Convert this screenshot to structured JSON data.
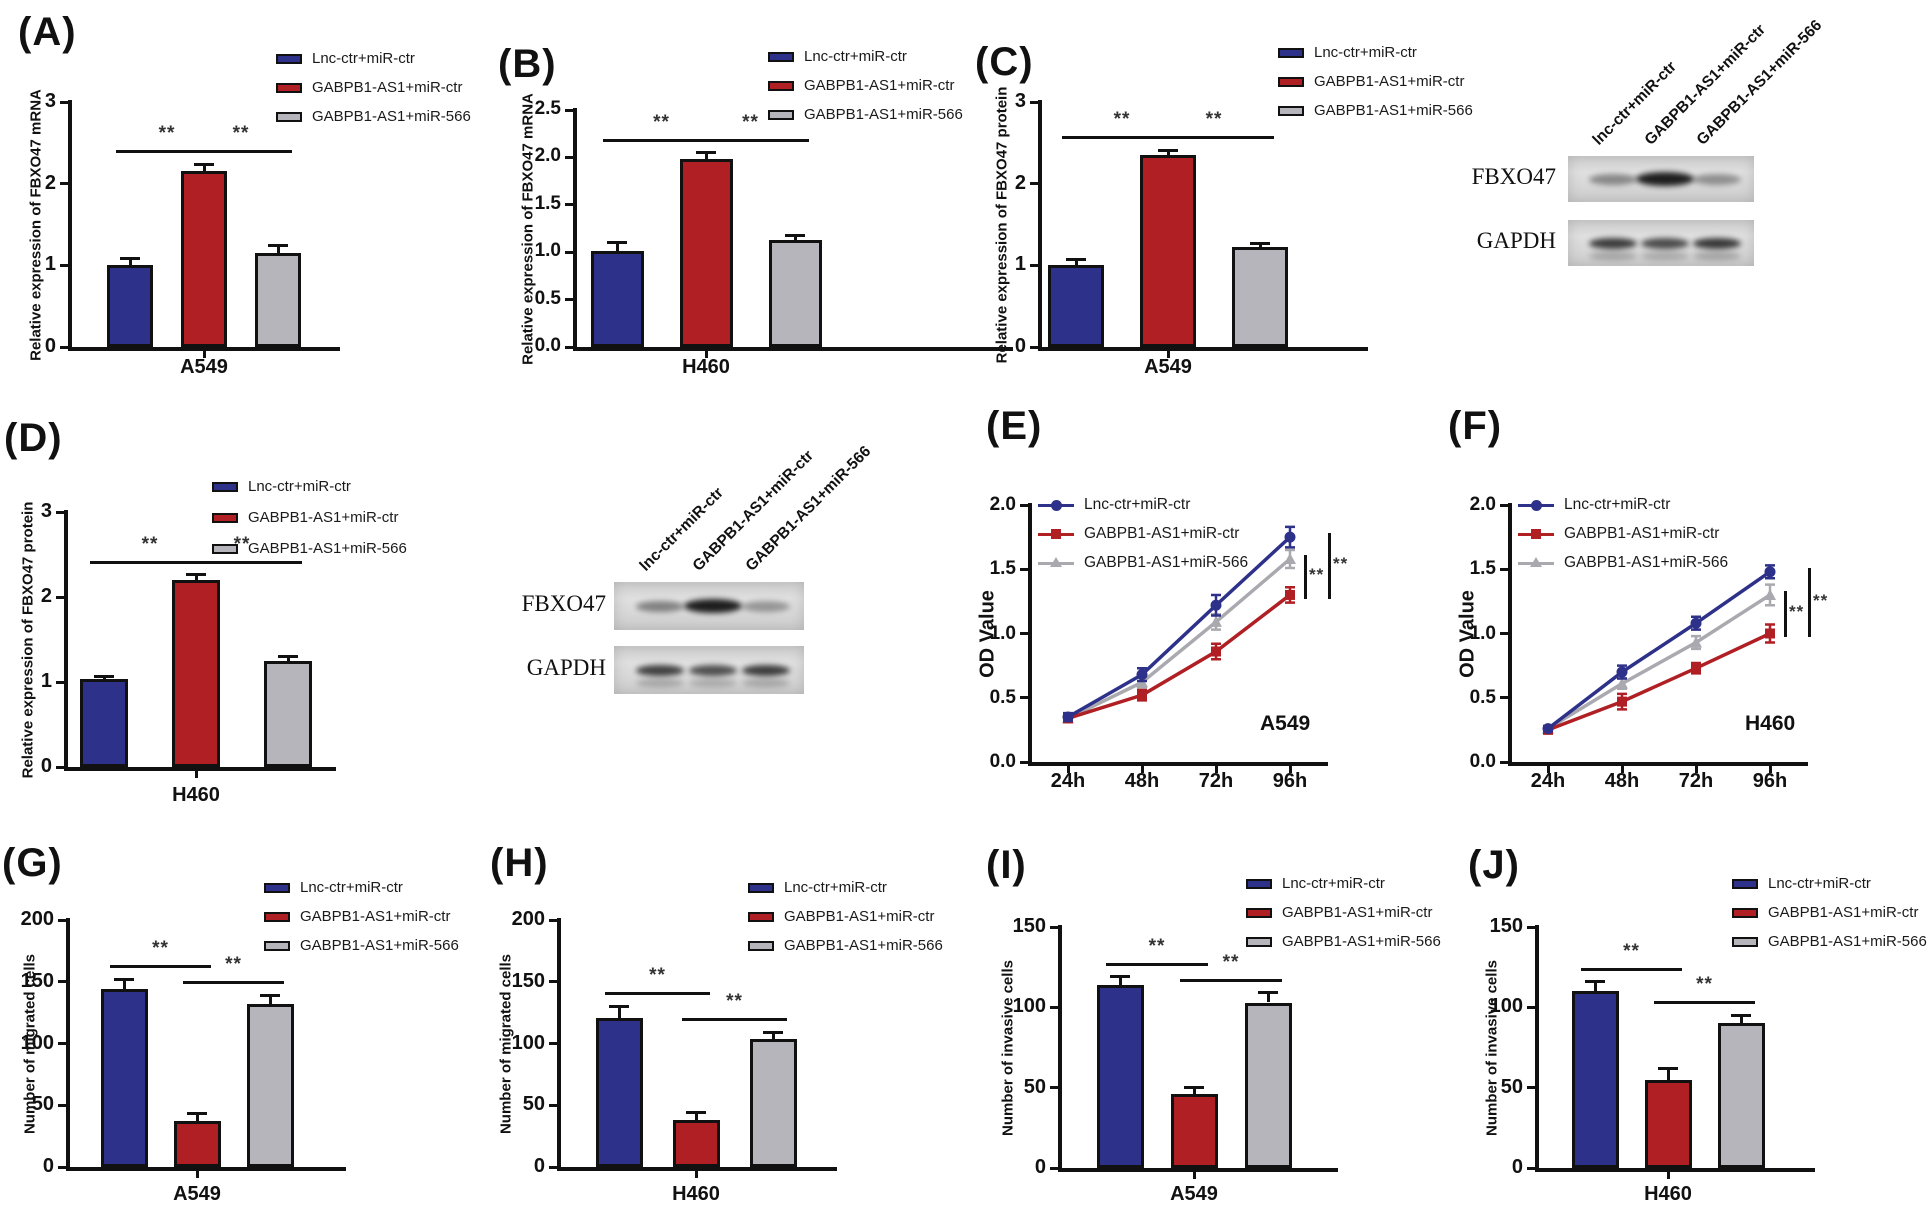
{
  "figure": {
    "groups": [
      {
        "label": "Lnc-ctr+miR-ctr",
        "color": "#2d3189"
      },
      {
        "label": "GABPB1-AS1+miR-ctr",
        "color": "#b01f24"
      },
      {
        "label": "GABPB1-AS1+miR-566",
        "color": "#b5b5bb"
      }
    ],
    "significance_marker": "**",
    "axis_color": "#111111"
  },
  "chart_data": [
    {
      "id": "A",
      "panel_label": "(A)",
      "type": "bar",
      "ylabel": "Relative expression of FBXO47 mRNA",
      "xlabel": "A549",
      "ylim": [
        0,
        3
      ],
      "ytick_labels": [
        "0",
        "1",
        "2",
        "3"
      ],
      "categories": [
        "Lnc-ctr+miR-ctr",
        "GABPB1-AS1+miR-ctr",
        "GABPB1-AS1+miR-566"
      ],
      "values": [
        1.0,
        2.15,
        1.15
      ],
      "errors": [
        0.08,
        0.09,
        0.09
      ],
      "significance": [
        {
          "between": [
            0,
            1
          ],
          "label": "**"
        },
        {
          "between": [
            1,
            2
          ],
          "label": "**"
        }
      ]
    },
    {
      "id": "B",
      "panel_label": "(B)",
      "type": "bar",
      "ylabel": "Relative expression of FBXO47 mRNA",
      "xlabel": "H460",
      "ylim": [
        0,
        2.5
      ],
      "ytick_labels": [
        "0.0",
        "0.5",
        "1.0",
        "1.5",
        "2.0",
        "2.5"
      ],
      "categories": [
        "Lnc-ctr+miR-ctr",
        "GABPB1-AS1+miR-ctr",
        "GABPB1-AS1+miR-566"
      ],
      "values": [
        1.01,
        1.98,
        1.13
      ],
      "errors": [
        0.09,
        0.07,
        0.05
      ],
      "significance": [
        {
          "between": [
            0,
            1
          ],
          "label": "**"
        },
        {
          "between": [
            1,
            2
          ],
          "label": "**"
        }
      ]
    },
    {
      "id": "C",
      "panel_label": "(C)",
      "type": "bar",
      "ylabel": "Relative expression of FBXO47 protein",
      "xlabel": "A549",
      "ylim": [
        0,
        3
      ],
      "ytick_labels": [
        "0",
        "1",
        "2",
        "3"
      ],
      "categories": [
        "Lnc-ctr+miR-ctr",
        "GABPB1-AS1+miR-ctr",
        "GABPB1-AS1+miR-566"
      ],
      "values": [
        1.01,
        2.35,
        1.22
      ],
      "errors": [
        0.06,
        0.06,
        0.05
      ],
      "significance": [
        {
          "between": [
            0,
            1
          ],
          "label": "**"
        },
        {
          "between": [
            1,
            2
          ],
          "label": "**"
        }
      ]
    },
    {
      "id": "C_blot",
      "type": "western_blot",
      "lane_labels": [
        "lnc-ctr+miR-ctr",
        "GABPB1-AS1+miR-ctr",
        "GABPB1-AS1+miR-566"
      ],
      "rows": [
        {
          "label": "FBXO47",
          "band_intensities": [
            0.42,
            0.95,
            0.38
          ]
        },
        {
          "label": "GAPDH",
          "band_intensities": [
            0.8,
            0.72,
            0.82
          ]
        }
      ]
    },
    {
      "id": "D",
      "panel_label": "(D)",
      "type": "bar",
      "ylabel": "Relative expression of FBXO47 protein",
      "xlabel": "H460",
      "ylim": [
        0,
        3
      ],
      "ytick_labels": [
        "0",
        "1",
        "2",
        "3"
      ],
      "categories": [
        "Lnc-ctr+miR-ctr",
        "GABPB1-AS1+miR-ctr",
        "GABPB1-AS1+miR-566"
      ],
      "values": [
        1.03,
        2.2,
        1.25
      ],
      "errors": [
        0.04,
        0.06,
        0.05
      ],
      "significance": [
        {
          "between": [
            0,
            1
          ],
          "label": "**"
        },
        {
          "between": [
            1,
            2
          ],
          "label": "**"
        }
      ]
    },
    {
      "id": "D_blot",
      "type": "western_blot",
      "lane_labels": [
        "lnc-ctr+miR-ctr",
        "GABPB1-AS1+miR-ctr",
        "GABPB1-AS1+miR-566"
      ],
      "rows": [
        {
          "label": "FBXO47",
          "band_intensities": [
            0.45,
            0.95,
            0.35
          ]
        },
        {
          "label": "GAPDH",
          "band_intensities": [
            0.78,
            0.7,
            0.8
          ]
        }
      ]
    },
    {
      "id": "E",
      "panel_label": "(E)",
      "type": "line",
      "ylabel": "OD Value",
      "annotation": "A549",
      "x_labels": [
        "24h",
        "48h",
        "72h",
        "96h"
      ],
      "ylim": [
        0,
        2
      ],
      "ytick_labels": [
        "0.0",
        "0.5",
        "1.0",
        "1.5",
        "2.0"
      ],
      "series": [
        {
          "name": "Lnc-ctr+miR-ctr",
          "marker": "circle",
          "color": "#2d3189",
          "values": [
            0.35,
            0.68,
            1.22,
            1.75
          ],
          "errors": [
            0.03,
            0.05,
            0.08,
            0.08
          ]
        },
        {
          "name": "GABPB1-AS1+miR-ctr",
          "marker": "square",
          "color": "#b01f24",
          "values": [
            0.34,
            0.52,
            0.86,
            1.3
          ],
          "errors": [
            0.03,
            0.04,
            0.06,
            0.06
          ]
        },
        {
          "name": "GABPB1-AS1+miR-566",
          "marker": "triangle",
          "color": "#a9a9af",
          "values": [
            0.34,
            0.62,
            1.09,
            1.58
          ],
          "errors": [
            0.03,
            0.04,
            0.06,
            0.07
          ]
        }
      ],
      "significance": [
        {
          "between": [
            2,
            1
          ],
          "label": "**"
        },
        {
          "between": [
            0,
            1
          ],
          "label": "**"
        }
      ]
    },
    {
      "id": "F",
      "panel_label": "(F)",
      "type": "line",
      "ylabel": "OD Value",
      "annotation": "H460",
      "x_labels": [
        "24h",
        "48h",
        "72h",
        "96h"
      ],
      "ylim": [
        0,
        2
      ],
      "ytick_labels": [
        "0.0",
        "0.5",
        "1.0",
        "1.5",
        "2.0"
      ],
      "series": [
        {
          "name": "Lnc-ctr+miR-ctr",
          "marker": "circle",
          "color": "#2d3189",
          "values": [
            0.26,
            0.7,
            1.08,
            1.48
          ],
          "errors": [
            0.02,
            0.05,
            0.05,
            0.05
          ]
        },
        {
          "name": "GABPB1-AS1+miR-ctr",
          "marker": "square",
          "color": "#b01f24",
          "values": [
            0.25,
            0.47,
            0.73,
            1.0
          ],
          "errors": [
            0.02,
            0.06,
            0.04,
            0.07
          ]
        },
        {
          "name": "GABPB1-AS1+miR-566",
          "marker": "triangle",
          "color": "#a9a9af",
          "values": [
            0.26,
            0.61,
            0.93,
            1.3
          ],
          "errors": [
            0.02,
            0.04,
            0.05,
            0.08
          ]
        }
      ],
      "significance": [
        {
          "between": [
            2,
            1
          ],
          "label": "**"
        },
        {
          "between": [
            0,
            1
          ],
          "label": "**"
        }
      ]
    },
    {
      "id": "G",
      "panel_label": "(G)",
      "type": "bar",
      "ylabel": "Number of migrated cells",
      "xlabel": "A549",
      "ylim": [
        0,
        200
      ],
      "ytick_labels": [
        "0",
        "50",
        "100",
        "150",
        "200"
      ],
      "categories": [
        "Lnc-ctr+miR-ctr",
        "GABPB1-AS1+miR-ctr",
        "GABPB1-AS1+miR-566"
      ],
      "values": [
        144,
        37,
        132
      ],
      "errors": [
        8,
        6,
        7
      ],
      "significance": [
        {
          "between": [
            0,
            1
          ],
          "label": "**"
        },
        {
          "between": [
            1,
            2
          ],
          "label": "**"
        }
      ]
    },
    {
      "id": "H",
      "panel_label": "(H)",
      "type": "bar",
      "ylabel": "Number of migrated cells",
      "xlabel": "H460",
      "ylim": [
        0,
        200
      ],
      "ytick_labels": [
        "0",
        "50",
        "100",
        "150",
        "200"
      ],
      "categories": [
        "Lnc-ctr+miR-ctr",
        "GABPB1-AS1+miR-ctr",
        "GABPB1-AS1+miR-566"
      ],
      "values": [
        121,
        38,
        104
      ],
      "errors": [
        9,
        6,
        5
      ],
      "significance": [
        {
          "between": [
            0,
            1
          ],
          "label": "**"
        },
        {
          "between": [
            1,
            2
          ],
          "label": "**"
        }
      ]
    },
    {
      "id": "I",
      "panel_label": "(I)",
      "type": "bar",
      "ylabel": "Number of invasive cells",
      "xlabel": "A549",
      "ylim": [
        0,
        150
      ],
      "ytick_labels": [
        "0",
        "50",
        "100",
        "150"
      ],
      "categories": [
        "Lnc-ctr+miR-ctr",
        "GABPB1-AS1+miR-ctr",
        "GABPB1-AS1+miR-566"
      ],
      "values": [
        114,
        46,
        103
      ],
      "errors": [
        5,
        4,
        6
      ],
      "significance": [
        {
          "between": [
            0,
            1
          ],
          "label": "**"
        },
        {
          "between": [
            1,
            2
          ],
          "label": "**"
        }
      ]
    },
    {
      "id": "J",
      "panel_label": "(J)",
      "type": "bar",
      "ylabel": "Number of invasive cells",
      "xlabel": "H460",
      "ylim": [
        0,
        150
      ],
      "ytick_labels": [
        "0",
        "50",
        "100",
        "150"
      ],
      "categories": [
        "Lnc-ctr+miR-ctr",
        "GABPB1-AS1+miR-ctr",
        "GABPB1-AS1+miR-566"
      ],
      "values": [
        110,
        55,
        90
      ],
      "errors": [
        6,
        7,
        5
      ],
      "significance": [
        {
          "between": [
            0,
            1
          ],
          "label": "**"
        },
        {
          "between": [
            1,
            2
          ],
          "label": "**"
        }
      ]
    }
  ]
}
